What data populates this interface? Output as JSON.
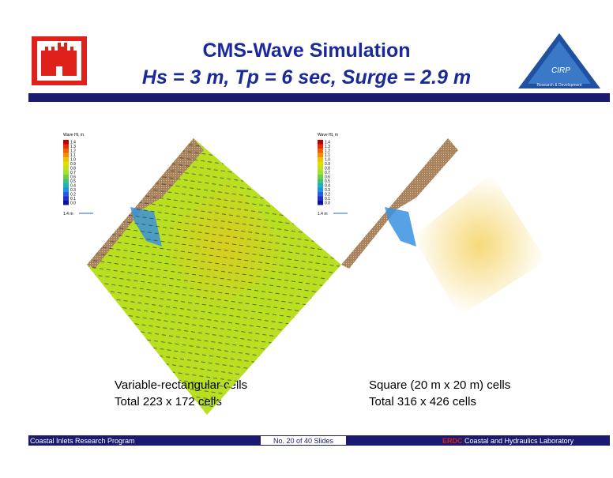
{
  "header": {
    "title": "CMS-Wave Simulation",
    "subtitle": "Hs = 3 m, Tp = 6 sec, Surge = 2.9 m",
    "logo_text": "CIRP",
    "logo_caption": "Research & Development"
  },
  "panels": [
    {
      "legend_title": "Wave Ht, m",
      "legend_labels": [
        "1.4",
        "1.3",
        "1.2",
        "1.1",
        "1.0",
        "0.9",
        "0.8",
        "0.7",
        "0.6",
        "0.5",
        "0.4",
        "0.3",
        "0.2",
        "0.1",
        "0.0"
      ],
      "vector_scale": "1.4 m",
      "caption_lines": [
        "Variable-rectangular cells",
        "Total 223 x 172 cells"
      ]
    },
    {
      "legend_title": "Wave Ht, m",
      "legend_labels": [
        "1.4",
        "1.3",
        "1.2",
        "1.1",
        "1.0",
        "0.9",
        "0.8",
        "0.7",
        "0.6",
        "0.5",
        "0.4",
        "0.3",
        "0.2",
        "0.1",
        "0.0"
      ],
      "vector_scale": "1.4 m",
      "caption_lines": [
        "Square (20 m x 20 m) cells",
        "Total 316 x 426 cells"
      ]
    }
  ],
  "footer": {
    "program": "Coastal Inlets Research Program",
    "slide_number": "No. 20 of 40 Slides",
    "org": "ERDC",
    "lab": "Coastal and Hydraulics Laboratory"
  }
}
